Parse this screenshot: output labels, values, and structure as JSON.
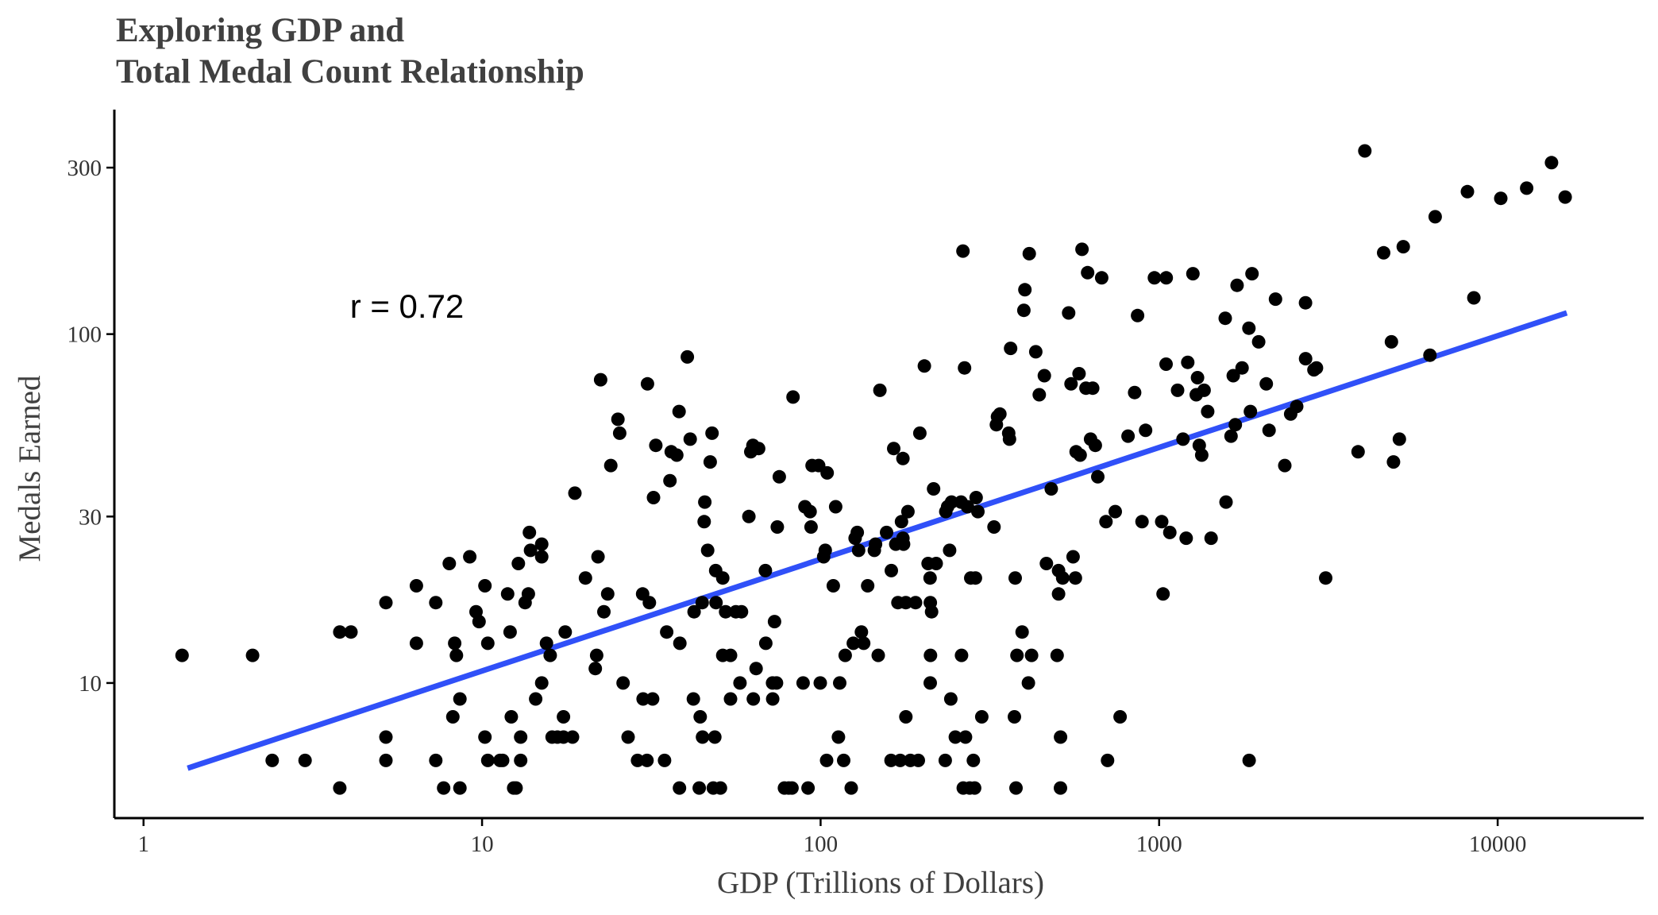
{
  "chart_data": {
    "type": "scatter",
    "title_lines": [
      "Exploring GDP and",
      "Total Medal Count Relationship"
    ],
    "xlabel": "GDP (Trillions of Dollars)",
    "ylabel": "Medals Earned",
    "x_scale": "log10",
    "y_scale": "log10",
    "xlim": [
      0.82,
      27000
    ],
    "ylim": [
      4.1,
      440
    ],
    "x_ticks": [
      1,
      10,
      100,
      1000,
      10000
    ],
    "x_tick_labels": [
      "1",
      "10",
      "100",
      "1000",
      "10000"
    ],
    "y_ticks": [
      10,
      30,
      100,
      300
    ],
    "y_tick_labels": [
      "10",
      "30",
      "100",
      "300"
    ],
    "grid": false,
    "annotation": {
      "text": "r = 0.72",
      "x": 6,
      "y": 120
    },
    "fit_line": {
      "x": [
        1.35,
        16000
      ],
      "y": [
        5.7,
        115
      ],
      "color": "#3050f8"
    },
    "point_color": "#000000",
    "points": [
      [
        1.3,
        12
      ],
      [
        2.1,
        12
      ],
      [
        2.4,
        6
      ],
      [
        3.0,
        6
      ],
      [
        3.8,
        5
      ],
      [
        3.8,
        14
      ],
      [
        4.1,
        14
      ],
      [
        5.2,
        7
      ],
      [
        5.2,
        6
      ],
      [
        5.2,
        17
      ],
      [
        6.4,
        13
      ],
      [
        6.4,
        19
      ],
      [
        7.3,
        17
      ],
      [
        7.3,
        6
      ],
      [
        7.7,
        5
      ],
      [
        8.0,
        22
      ],
      [
        8.2,
        8
      ],
      [
        8.3,
        13
      ],
      [
        8.4,
        12
      ],
      [
        8.6,
        9
      ],
      [
        8.6,
        5
      ],
      [
        9.2,
        23
      ],
      [
        9.6,
        16
      ],
      [
        9.8,
        15
      ],
      [
        10.2,
        19
      ],
      [
        10.2,
        7
      ],
      [
        10.4,
        13
      ],
      [
        10.4,
        6
      ],
      [
        11.3,
        6
      ],
      [
        11.5,
        6
      ],
      [
        11.9,
        18
      ],
      [
        12.1,
        14
      ],
      [
        12.2,
        8
      ],
      [
        12.4,
        5
      ],
      [
        12.6,
        5
      ],
      [
        12.8,
        22
      ],
      [
        13.0,
        7
      ],
      [
        13.0,
        6
      ],
      [
        13.4,
        17
      ],
      [
        13.7,
        18
      ],
      [
        13.8,
        27
      ],
      [
        13.9,
        24
      ],
      [
        14.4,
        9
      ],
      [
        15.0,
        25
      ],
      [
        15.0,
        23
      ],
      [
        15.0,
        10
      ],
      [
        15.5,
        13
      ],
      [
        15.9,
        12
      ],
      [
        16.1,
        7
      ],
      [
        16.7,
        7
      ],
      [
        17.4,
        8
      ],
      [
        17.4,
        7
      ],
      [
        17.6,
        14
      ],
      [
        18.5,
        7
      ],
      [
        18.8,
        35
      ],
      [
        20.2,
        20
      ],
      [
        21.6,
        11
      ],
      [
        21.8,
        12
      ],
      [
        22.0,
        23
      ],
      [
        22.4,
        74
      ],
      [
        22.9,
        16
      ],
      [
        23.5,
        18
      ],
      [
        24.0,
        42
      ],
      [
        25.2,
        57
      ],
      [
        25.5,
        52
      ],
      [
        26.1,
        10
      ],
      [
        27.0,
        7
      ],
      [
        28.8,
        6
      ],
      [
        29.8,
        18
      ],
      [
        29.9,
        9
      ],
      [
        30.7,
        6
      ],
      [
        30.8,
        72
      ],
      [
        31.2,
        17
      ],
      [
        31.9,
        9
      ],
      [
        32.1,
        34
      ],
      [
        32.6,
        48
      ],
      [
        34.6,
        6
      ],
      [
        35.1,
        14
      ],
      [
        35.9,
        38
      ],
      [
        36.2,
        46
      ],
      [
        37.6,
        45
      ],
      [
        38.2,
        60
      ],
      [
        38.4,
        13
      ],
      [
        38.3,
        5
      ],
      [
        40.4,
        86
      ],
      [
        41.2,
        50
      ],
      [
        42.1,
        9
      ],
      [
        42.3,
        16
      ],
      [
        43.8,
        5
      ],
      [
        44.1,
        8
      ],
      [
        44.7,
        17
      ],
      [
        44.8,
        7
      ],
      [
        45.3,
        29
      ],
      [
        45.5,
        33
      ],
      [
        46.4,
        24
      ],
      [
        47.2,
        43
      ],
      [
        47.8,
        52
      ],
      [
        48.2,
        5
      ],
      [
        48.7,
        7
      ],
      [
        49.0,
        21
      ],
      [
        49.1,
        17
      ],
      [
        50.6,
        5
      ],
      [
        51.4,
        12
      ],
      [
        51.4,
        20
      ],
      [
        52.4,
        16
      ],
      [
        54.2,
        12
      ],
      [
        54.2,
        9
      ],
      [
        56.2,
        16
      ],
      [
        57.8,
        10
      ],
      [
        58.4,
        16
      ],
      [
        61.4,
        30
      ],
      [
        62.2,
        46
      ],
      [
        63.1,
        48
      ],
      [
        63.3,
        9
      ],
      [
        64.5,
        11
      ],
      [
        65.6,
        47
      ],
      [
        68.7,
        21
      ],
      [
        68.9,
        13
      ],
      [
        72.1,
        10
      ],
      [
        72.2,
        9
      ],
      [
        73.1,
        15
      ],
      [
        74.1,
        10
      ],
      [
        74.5,
        28
      ],
      [
        75.5,
        39
      ],
      [
        78.2,
        5
      ],
      [
        80.5,
        5
      ],
      [
        82.3,
        5
      ],
      [
        82.9,
        66
      ],
      [
        88.8,
        10
      ],
      [
        89.9,
        32
      ],
      [
        91.8,
        5
      ],
      [
        93.1,
        31
      ],
      [
        93.7,
        28
      ],
      [
        94.4,
        42
      ],
      [
        98.7,
        42
      ],
      [
        99.8,
        10
      ],
      [
        102.1,
        23
      ],
      [
        103.2,
        24
      ],
      [
        104.2,
        6
      ],
      [
        104.6,
        40
      ],
      [
        109.0,
        19
      ],
      [
        110.8,
        32
      ],
      [
        112.9,
        7
      ],
      [
        113.9,
        10
      ],
      [
        117.0,
        6
      ],
      [
        118.2,
        12
      ],
      [
        123.2,
        5
      ],
      [
        124.9,
        13
      ],
      [
        126.5,
        26
      ],
      [
        128.3,
        27
      ],
      [
        129.5,
        24
      ],
      [
        132.0,
        14
      ],
      [
        134.1,
        13
      ],
      [
        137.7,
        19
      ],
      [
        144.1,
        24
      ],
      [
        145.3,
        25
      ],
      [
        148.0,
        12
      ],
      [
        149.7,
        69
      ],
      [
        156.6,
        27
      ],
      [
        161.8,
        21
      ],
      [
        161.4,
        6
      ],
      [
        164.4,
        47
      ],
      [
        166.8,
        25
      ],
      [
        169.2,
        17
      ],
      [
        171.9,
        6
      ],
      [
        173.4,
        29
      ],
      [
        175.1,
        26
      ],
      [
        175.8,
        25
      ],
      [
        175.1,
        44
      ],
      [
        178.5,
        17
      ],
      [
        178.6,
        8
      ],
      [
        181.1,
        31
      ],
      [
        184.2,
        6
      ],
      [
        190.8,
        17
      ],
      [
        194.4,
        6
      ],
      [
        196.4,
        52
      ],
      [
        202.5,
        81
      ],
      [
        207.8,
        22
      ],
      [
        210.6,
        20
      ],
      [
        211.1,
        12
      ],
      [
        210.8,
        10
      ],
      [
        210.9,
        17
      ],
      [
        212.8,
        16
      ],
      [
        215.6,
        36
      ],
      [
        219.5,
        22
      ],
      [
        233.5,
        6
      ],
      [
        234.3,
        31
      ],
      [
        237.3,
        32
      ],
      [
        240.5,
        24
      ],
      [
        242.4,
        9
      ],
      [
        243.6,
        33
      ],
      [
        250.0,
        7
      ],
      [
        259.9,
        33
      ],
      [
        260.8,
        12
      ],
      [
        263.3,
        173
      ],
      [
        263.9,
        5
      ],
      [
        266.2,
        80
      ],
      [
        268.0,
        7
      ],
      [
        271.6,
        32
      ],
      [
        275.7,
        5
      ],
      [
        277.7,
        20
      ],
      [
        282.7,
        6
      ],
      [
        285.1,
        5
      ],
      [
        286.6,
        20
      ],
      [
        288.1,
        34
      ],
      [
        291.5,
        31
      ],
      [
        299.3,
        8
      ],
      [
        325.2,
        28
      ],
      [
        330.6,
        55
      ],
      [
        333.0,
        58
      ],
      [
        338.6,
        59
      ],
      [
        359.5,
        52
      ],
      [
        361.4,
        50
      ],
      [
        364.2,
        91
      ],
      [
        373.6,
        8
      ],
      [
        375.7,
        20
      ],
      [
        377.8,
        5
      ],
      [
        380.1,
        12
      ],
      [
        393.7,
        14
      ],
      [
        398.4,
        117
      ],
      [
        401.4,
        134
      ],
      [
        411.0,
        10
      ],
      [
        413.4,
        170
      ],
      [
        420.0,
        12
      ],
      [
        432.1,
        89
      ],
      [
        442.6,
        67
      ],
      [
        458.1,
        76
      ],
      [
        464.6,
        22
      ],
      [
        480.1,
        36
      ],
      [
        499.7,
        12
      ],
      [
        504.6,
        18
      ],
      [
        504.6,
        21
      ],
      [
        511.1,
        5
      ],
      [
        511.5,
        7
      ],
      [
        518.8,
        20
      ],
      [
        540.5,
        115
      ],
      [
        549.3,
        72
      ],
      [
        556.9,
        23
      ],
      [
        565.7,
        20
      ],
      [
        568.5,
        46
      ],
      [
        579.9,
        77
      ],
      [
        584.4,
        45
      ],
      [
        591.6,
        175
      ],
      [
        608.0,
        70
      ],
      [
        614.8,
        150
      ],
      [
        627.3,
        50
      ],
      [
        636.5,
        70
      ],
      [
        647.9,
        48
      ],
      [
        658.8,
        39
      ],
      [
        676.6,
        145
      ],
      [
        696.7,
        29
      ],
      [
        704.1,
        6
      ],
      [
        741.9,
        31
      ],
      [
        766.9,
        8
      ],
      [
        809.3,
        51
      ],
      [
        846.6,
        68
      ],
      [
        863.7,
        113
      ],
      [
        890.0,
        29
      ],
      [
        911.9,
        53
      ],
      [
        968.2,
        145
      ],
      [
        1017.5,
        29
      ],
      [
        1027.0,
        18
      ],
      [
        1048.5,
        82
      ],
      [
        1049.3,
        145
      ],
      [
        1075.1,
        27
      ],
      [
        1133.9,
        69
      ],
      [
        1176.4,
        50
      ],
      [
        1202.0,
        26
      ],
      [
        1215.1,
        83
      ],
      [
        1258.5,
        149
      ],
      [
        1287.0,
        67
      ],
      [
        1298.4,
        75
      ],
      [
        1314.2,
        48
      ],
      [
        1336.4,
        45
      ],
      [
        1357.7,
        69
      ],
      [
        1391.3,
        60
      ],
      [
        1424.3,
        26
      ],
      [
        1567.6,
        111
      ],
      [
        1576.4,
        33
      ],
      [
        1630.5,
        51
      ],
      [
        1656.0,
        76
      ],
      [
        1679.4,
        55
      ],
      [
        1699.4,
        138
      ],
      [
        1757.4,
        80
      ],
      [
        1841.7,
        104
      ],
      [
        1844.5,
        6
      ],
      [
        1860.0,
        60
      ],
      [
        1880.6,
        149
      ],
      [
        1967.4,
        95
      ],
      [
        2072.4,
        72
      ],
      [
        2112.3,
        53
      ],
      [
        2206.9,
        126
      ],
      [
        2350.3,
        42
      ],
      [
        2446.3,
        59
      ],
      [
        2549.1,
        62
      ],
      [
        2708.0,
        85
      ],
      [
        2707.0,
        123
      ],
      [
        2866.0,
        79
      ],
      [
        2916.4,
        80
      ],
      [
        3104.0,
        20
      ],
      [
        3868.8,
        46
      ],
      [
        4051.0,
        335
      ],
      [
        4605.6,
        171
      ],
      [
        4855.2,
        95
      ],
      [
        4924.6,
        43
      ],
      [
        5125.2,
        50
      ],
      [
        5263.1,
        178
      ],
      [
        6309.7,
        87
      ],
      [
        6538.7,
        217
      ],
      [
        8141.3,
        256
      ],
      [
        8502.6,
        127
      ],
      [
        10213.6,
        245
      ],
      [
        12180.2,
        262
      ],
      [
        14424.6,
        310
      ],
      [
        15823.2,
        247
      ]
    ]
  }
}
